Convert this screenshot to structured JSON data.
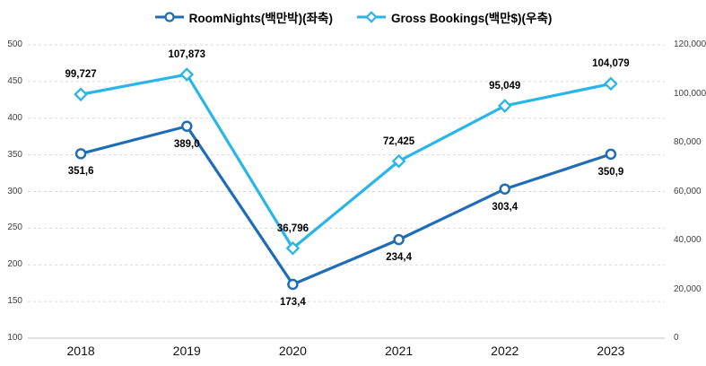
{
  "chart_data": {
    "type": "line",
    "title": "",
    "categories": [
      "2018",
      "2019",
      "2020",
      "2021",
      "2022",
      "2023"
    ],
    "series": [
      {
        "name": "RoomNights(백만박)(좌축)",
        "axis": "left",
        "marker": "circle",
        "color": "#1e6db6",
        "values": [
          351.6,
          389.0,
          173.4,
          234.4,
          303.4,
          350.9
        ],
        "point_labels": [
          "351,6",
          "389,0",
          "173,4",
          "234,4",
          "303,4",
          "350,9"
        ],
        "label_position": "below"
      },
      {
        "name": "Gross Bookings(백만$)(우축)",
        "axis": "right",
        "marker": "diamond",
        "color": "#29b5e8",
        "values": [
          99727,
          107873,
          36796,
          72425,
          95049,
          104079
        ],
        "point_labels": [
          "99,727",
          "107,873",
          "36,796",
          "72,425",
          "95,049",
          "104,079"
        ],
        "label_position": "above"
      }
    ],
    "left_axis": {
      "min": 100,
      "max": 500,
      "step": 50,
      "ticks": [
        "100",
        "150",
        "200",
        "250",
        "300",
        "350",
        "400",
        "450",
        "500"
      ]
    },
    "right_axis": {
      "min": 0,
      "max": 120000,
      "step": 20000,
      "ticks": [
        "0",
        "20,000",
        "40,000",
        "60,000",
        "80,000",
        "100,000",
        "120,000"
      ]
    },
    "grid": {
      "horizontal": "dashed",
      "color": "#d9d9d9"
    },
    "axis_line_color": "#c4c4c4",
    "legend_position": "top"
  }
}
